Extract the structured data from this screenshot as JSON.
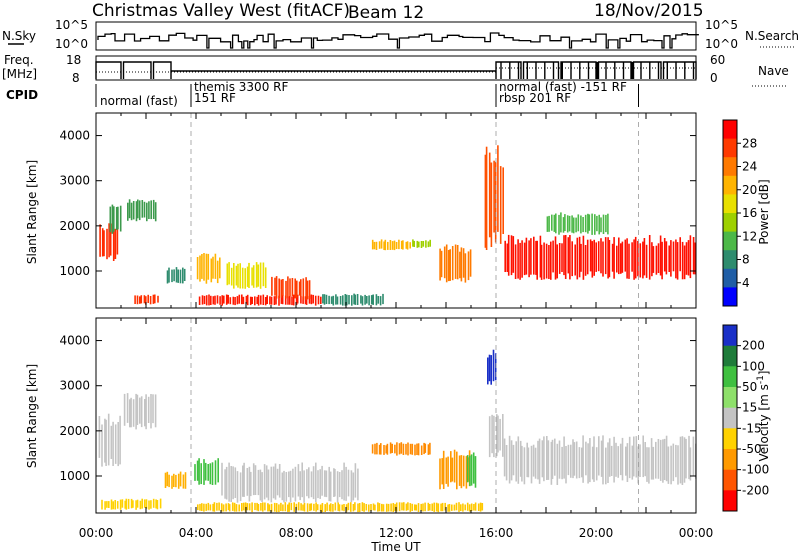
{
  "header": {
    "title": "Christmas Valley West (fitACF)",
    "beam": "Beam 12",
    "date": "18/Nov/2015"
  },
  "summary": {
    "nsky_label": "N.Sky",
    "nsky_ticks": [
      "10^5",
      "10^0"
    ],
    "nsearch_label": "N.Search",
    "nsearch_ticks": [
      "10^5",
      "10^0"
    ],
    "freq_label_1": "Freq.",
    "freq_label_2": "[MHz]",
    "freq_ticks": [
      "18",
      "8"
    ],
    "nave_label": "Nave",
    "nave_ticks": [
      "60",
      "0"
    ],
    "cpid_label": "CPID",
    "cpid_segments": [
      {
        "start_h": 0.0,
        "label": "normal (fast)",
        "row": 2
      },
      {
        "start_h": 3.8,
        "label": "themis 3300 RF",
        "row": 0
      },
      {
        "start_h": 3.8,
        "label": "151 RF",
        "row": 1
      },
      {
        "start_h": 16.0,
        "label": "normal (fast)  -151 RF",
        "row": 0
      },
      {
        "start_h": 16.0,
        "label": "rbsp 201 RF",
        "row": 1
      }
    ]
  },
  "colorbars": {
    "power": {
      "label": "Power [dB]",
      "ticks": [
        "28",
        "24",
        "20",
        "16",
        "12",
        "8",
        "4"
      ],
      "colors": [
        "#ff0000",
        "#ff3a00",
        "#ff7a00",
        "#ffb400",
        "#e8e000",
        "#9ed000",
        "#4cb848",
        "#2e8c6e",
        "#205ea6",
        "#0000ff"
      ]
    },
    "velocity": {
      "label_main": "Velocity [m s",
      "label_sup": "-1",
      "label_end": "]",
      "ticks": [
        "200",
        "100",
        "50",
        "15",
        "-15",
        "-50",
        "-100",
        "-200"
      ],
      "colors": [
        "#1a30c8",
        "#1f7c3a",
        "#3fc040",
        "#8ee06a",
        "#c4c4c4",
        "#ffd200",
        "#ff9a00",
        "#ff5500",
        "#ff0000"
      ]
    }
  },
  "chart_data": [
    {
      "type": "heatmap",
      "name": "power",
      "ylabel": "Slant Range [km]",
      "xlim_hours": [
        0,
        24
      ],
      "ylim_km": [
        180,
        4500
      ],
      "yticks": [
        "4000",
        "3000",
        "2000",
        "1000"
      ],
      "marker_hours": [
        3.8,
        16.0,
        21.7
      ],
      "patches": [
        {
          "t0": 0.1,
          "t1": 0.9,
          "r0": 1200,
          "r1": 2100,
          "c": "#ff2a00"
        },
        {
          "t0": 0.5,
          "t1": 1.0,
          "r0": 1800,
          "r1": 2500,
          "c": "#3c9a4c"
        },
        {
          "t0": 1.2,
          "t1": 2.4,
          "r0": 2100,
          "r1": 2600,
          "c": "#3c9a4c"
        },
        {
          "t0": 1.5,
          "t1": 2.5,
          "r0": 250,
          "r1": 500,
          "c": "#ff3000"
        },
        {
          "t0": 2.8,
          "t1": 3.6,
          "r0": 700,
          "r1": 1100,
          "c": "#2e8c6e"
        },
        {
          "t0": 4.0,
          "t1": 5.0,
          "r0": 700,
          "r1": 1400,
          "c": "#ffb400"
        },
        {
          "t0": 4.1,
          "t1": 9.0,
          "r0": 230,
          "r1": 480,
          "c": "#ff1800"
        },
        {
          "t0": 5.2,
          "t1": 6.8,
          "r0": 600,
          "r1": 1200,
          "c": "#e8e000"
        },
        {
          "t0": 7.0,
          "t1": 8.6,
          "r0": 350,
          "r1": 900,
          "c": "#ff3a00"
        },
        {
          "t0": 9.0,
          "t1": 11.5,
          "r0": 230,
          "r1": 500,
          "c": "#2e8c6e"
        },
        {
          "t0": 11.0,
          "t1": 12.6,
          "r0": 1450,
          "r1": 1700,
          "c": "#ffb400"
        },
        {
          "t0": 12.6,
          "t1": 13.4,
          "r0": 1500,
          "r1": 1700,
          "c": "#9ed000"
        },
        {
          "t0": 13.7,
          "t1": 15.0,
          "r0": 700,
          "r1": 1600,
          "c": "#ff7a00"
        },
        {
          "t0": 15.5,
          "t1": 16.3,
          "r0": 1400,
          "r1": 3800,
          "c": "#ff5000"
        },
        {
          "t0": 16.3,
          "t1": 24.0,
          "r0": 800,
          "r1": 1800,
          "c": "#ff1000"
        },
        {
          "t0": 18.0,
          "t1": 20.5,
          "r0": 1800,
          "r1": 2300,
          "c": "#4cb848"
        }
      ]
    },
    {
      "type": "heatmap",
      "name": "velocity",
      "ylabel": "Slant Range [km]",
      "xlabel": "Time UT",
      "xlim_hours": [
        0,
        24
      ],
      "ylim_km": [
        180,
        4500
      ],
      "yticks": [
        "4000",
        "3000",
        "2000",
        "1000"
      ],
      "xticks": [
        "00:00",
        "04:00",
        "08:00",
        "12:00",
        "16:00",
        "20:00",
        "00:00"
      ],
      "marker_hours": [
        3.8,
        16.0,
        21.7
      ],
      "patches": [
        {
          "t0": 0.1,
          "t1": 1.0,
          "r0": 1200,
          "r1": 2400,
          "c": "#c4c4c4"
        },
        {
          "t0": 1.1,
          "t1": 2.4,
          "r0": 2000,
          "r1": 2900,
          "c": "#c4c4c4"
        },
        {
          "t0": 0.2,
          "t1": 2.6,
          "r0": 250,
          "r1": 500,
          "c": "#ffd200"
        },
        {
          "t0": 2.7,
          "t1": 3.6,
          "r0": 700,
          "r1": 1100,
          "c": "#ffb000"
        },
        {
          "t0": 3.9,
          "t1": 4.9,
          "r0": 800,
          "r1": 1400,
          "c": "#3fc040"
        },
        {
          "t0": 5.0,
          "t1": 10.5,
          "r0": 400,
          "r1": 1300,
          "c": "#c4c4c4"
        },
        {
          "t0": 4.0,
          "t1": 15.5,
          "r0": 200,
          "r1": 420,
          "c": "#ffc800"
        },
        {
          "t0": 11.0,
          "t1": 13.4,
          "r0": 1450,
          "r1": 1750,
          "c": "#ff8a00"
        },
        {
          "t0": 13.7,
          "t1": 15.0,
          "r0": 700,
          "r1": 1600,
          "c": "#ff9a00"
        },
        {
          "t0": 14.8,
          "t1": 15.2,
          "r0": 700,
          "r1": 1600,
          "c": "#3fc040"
        },
        {
          "t0": 15.6,
          "t1": 16.0,
          "r0": 3000,
          "r1": 3800,
          "c": "#1a30c8"
        },
        {
          "t0": 15.7,
          "t1": 16.3,
          "r0": 1400,
          "r1": 2400,
          "c": "#c4c4c4"
        },
        {
          "t0": 16.3,
          "t1": 24.0,
          "r0": 800,
          "r1": 1900,
          "c": "#c4c4c4"
        }
      ]
    }
  ]
}
